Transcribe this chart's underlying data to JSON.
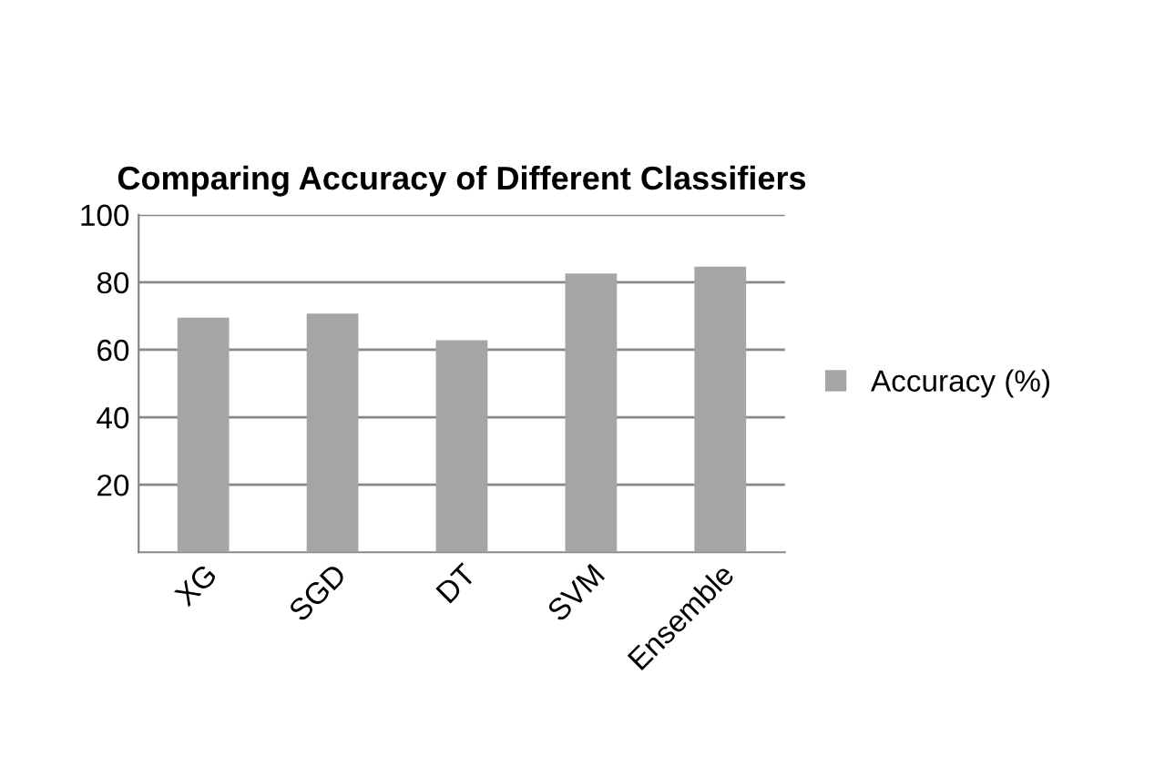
{
  "chart_data": {
    "type": "bar",
    "title": "Comparing Accuracy of Different Classifiers",
    "categories": [
      "XG",
      "SGD",
      "DT",
      "SVM",
      "Ensemble"
    ],
    "series": [
      {
        "name": "Accuracy (%)",
        "color": "#a5a5a5",
        "values": [
          69.5,
          70.7,
          62.8,
          82.6,
          84.6
        ]
      }
    ],
    "ylim": [
      0,
      100
    ],
    "yticks": [
      20,
      40,
      60,
      80,
      100
    ],
    "grid": "y",
    "legend": "right"
  }
}
